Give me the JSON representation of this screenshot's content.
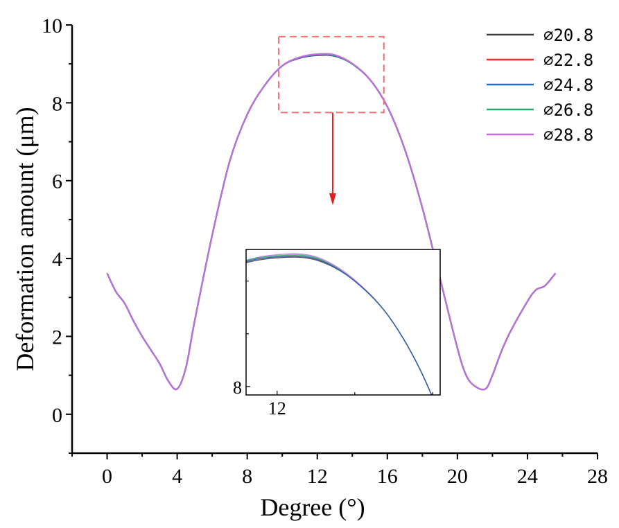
{
  "chart_data": {
    "type": "line",
    "xlabel": "Degree (°)",
    "ylabel": "Deformation amount (μm)",
    "xlim": [
      -2,
      28
    ],
    "ylim": [
      -1,
      10
    ],
    "xticks": [
      0,
      4,
      8,
      12,
      16,
      20,
      24,
      28
    ],
    "yticks": [
      0,
      2,
      4,
      6,
      8,
      10
    ],
    "x_tick_labels": [
      "0",
      "4",
      "8",
      "12",
      "16",
      "20",
      "24",
      "28"
    ],
    "y_tick_labels": [
      "0",
      "2",
      "4",
      "6",
      "8",
      "10"
    ],
    "grid": false,
    "legend_position": "top-right",
    "x": [
      0,
      0.5,
      1,
      1.5,
      2,
      2.5,
      3,
      3.5,
      4,
      4.5,
      5,
      6,
      7,
      8,
      9,
      10,
      11,
      12,
      13,
      14,
      15,
      16,
      17,
      18,
      19,
      20,
      20.5,
      21,
      21.6,
      22,
      22.5,
      23,
      24,
      24.5,
      25,
      25.6
    ],
    "series": [
      {
        "name": "⌀20.8",
        "color": "#3c3c3c",
        "values": [
          3.62,
          3.15,
          2.85,
          2.4,
          2.0,
          1.65,
          1.3,
          0.85,
          0.65,
          1.2,
          2.4,
          4.6,
          6.5,
          7.7,
          8.45,
          8.95,
          9.15,
          9.22,
          9.2,
          9.0,
          8.6,
          7.9,
          6.8,
          5.3,
          3.5,
          1.7,
          1.0,
          0.72,
          0.65,
          1.0,
          1.6,
          2.1,
          2.9,
          3.2,
          3.3,
          3.62
        ]
      },
      {
        "name": "⌀22.8",
        "color": "#ff2a2a",
        "values": [
          3.62,
          3.15,
          2.85,
          2.4,
          2.0,
          1.65,
          1.3,
          0.85,
          0.65,
          1.2,
          2.4,
          4.6,
          6.5,
          7.7,
          8.45,
          8.95,
          9.16,
          9.23,
          9.21,
          9.0,
          8.6,
          7.9,
          6.8,
          5.3,
          3.5,
          1.7,
          1.0,
          0.72,
          0.65,
          1.0,
          1.6,
          2.1,
          2.9,
          3.2,
          3.3,
          3.62
        ]
      },
      {
        "name": "⌀24.8",
        "color": "#1f6fcf",
        "values": [
          3.62,
          3.15,
          2.85,
          2.4,
          2.0,
          1.65,
          1.3,
          0.85,
          0.65,
          1.2,
          2.4,
          4.6,
          6.5,
          7.7,
          8.45,
          8.95,
          9.16,
          9.23,
          9.21,
          9.0,
          8.6,
          7.9,
          6.8,
          5.3,
          3.5,
          1.7,
          1.0,
          0.72,
          0.65,
          1.0,
          1.6,
          2.1,
          2.9,
          3.2,
          3.3,
          3.62
        ]
      },
      {
        "name": "⌀26.8",
        "color": "#22a86a",
        "values": [
          3.62,
          3.15,
          2.85,
          2.4,
          2.0,
          1.65,
          1.3,
          0.85,
          0.65,
          1.2,
          2.4,
          4.6,
          6.5,
          7.7,
          8.45,
          8.95,
          9.17,
          9.24,
          9.22,
          9.0,
          8.6,
          7.9,
          6.8,
          5.3,
          3.5,
          1.7,
          1.0,
          0.72,
          0.65,
          1.0,
          1.6,
          2.1,
          2.9,
          3.2,
          3.3,
          3.62
        ]
      },
      {
        "name": "⌀28.8",
        "color": "#bf6ee0",
        "values": [
          3.62,
          3.15,
          2.85,
          2.4,
          2.0,
          1.65,
          1.3,
          0.85,
          0.65,
          1.2,
          2.4,
          4.6,
          6.5,
          7.7,
          8.45,
          8.95,
          9.17,
          9.25,
          9.23,
          9.01,
          8.6,
          7.9,
          6.8,
          5.3,
          3.5,
          1.7,
          1.0,
          0.72,
          0.65,
          1.0,
          1.6,
          2.1,
          2.9,
          3.2,
          3.3,
          3.62
        ]
      }
    ],
    "zoom_region": {
      "xlim": [
        9.8,
        15.8
      ],
      "ylim": [
        7.75,
        9.7
      ]
    },
    "inset": {
      "x_tick_label": "12",
      "y_tick_label": "8",
      "x_tick_value": 12,
      "y_tick_value": 8,
      "xlim": [
        11.2,
        16.2
      ],
      "ylim": [
        7.92,
        9.3
      ]
    }
  }
}
